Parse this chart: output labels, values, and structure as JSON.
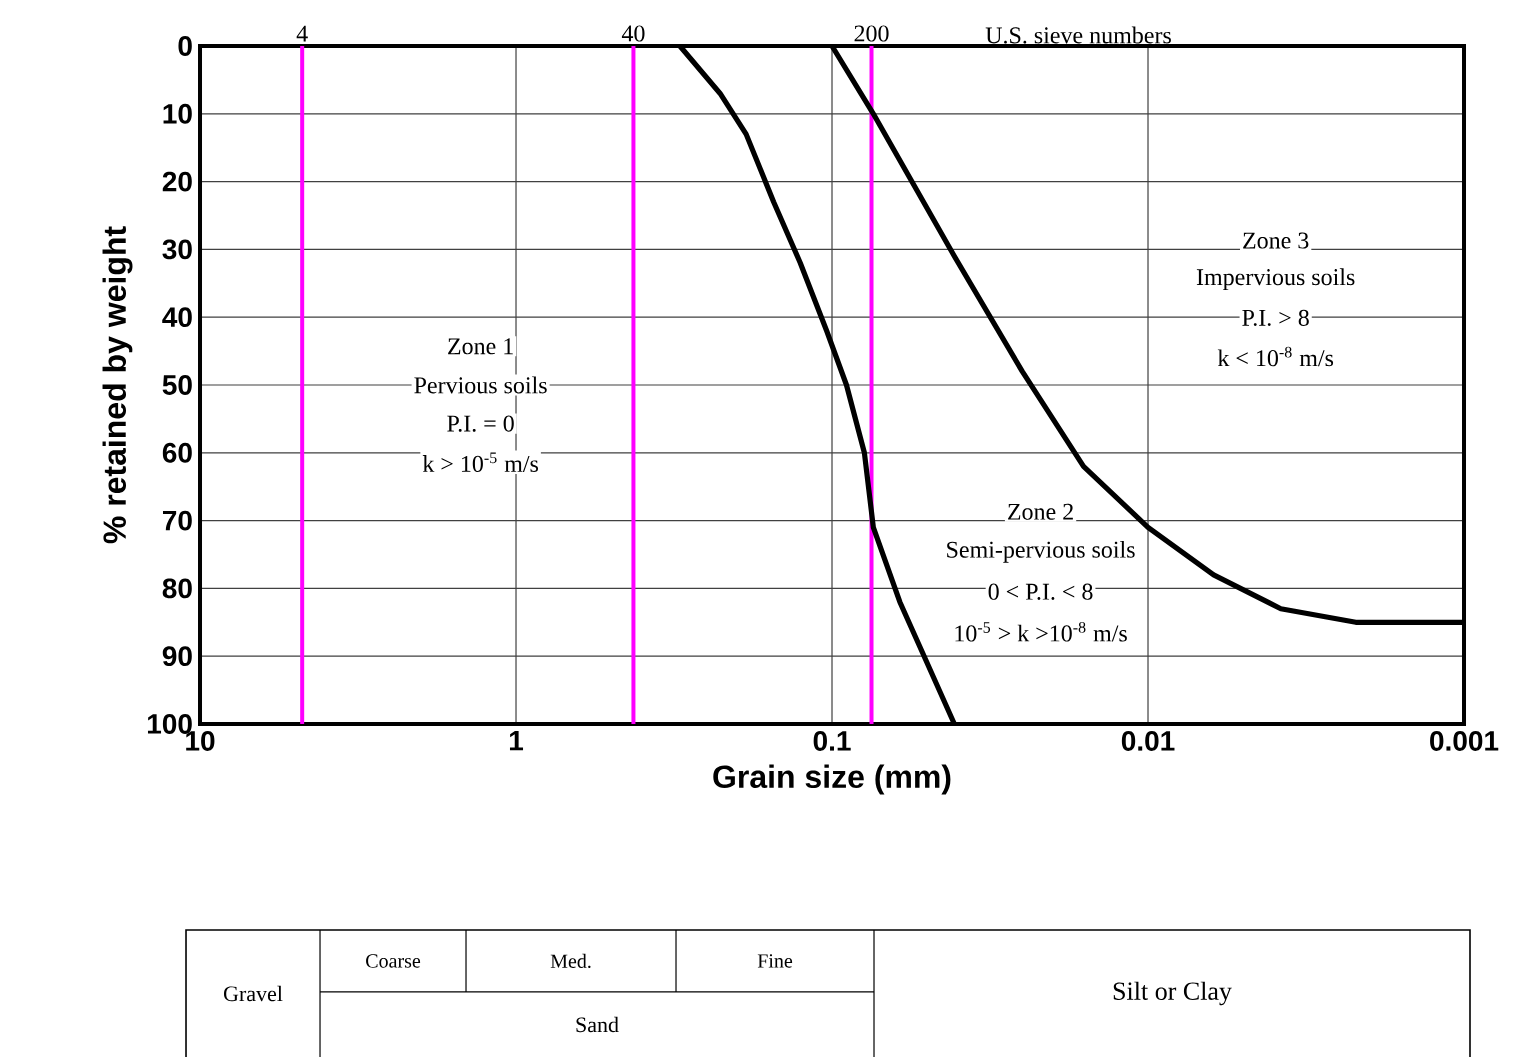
{
  "chart_data": {
    "type": "line",
    "xlabel": "Grain size (mm)",
    "ylabel": "% retained by weight",
    "log": "x",
    "grid": true,
    "marker": "none",
    "line_style": "solid",
    "xlim": [
      10,
      0.001
    ],
    "xticks": [
      10,
      1,
      0.1,
      0.01,
      0.001
    ],
    "ylim": [
      100,
      0
    ],
    "yticks": [
      0,
      10,
      20,
      30,
      40,
      50,
      60,
      70,
      80,
      90,
      100
    ],
    "series": [
      {
        "color": "#000000",
        "x": [
          0.303,
          0.226,
          0.187,
          0.153,
          0.126,
          0.104,
          0.09,
          0.079,
          0.074,
          0.061,
          0.05,
          0.041
        ],
        "values": [
          0,
          7,
          13,
          23,
          32,
          42,
          50,
          60,
          71,
          82,
          91,
          100
        ]
      },
      {
        "color": "#000000",
        "x": [
          0.1,
          0.074,
          0.041,
          0.025,
          0.016,
          0.01,
          0.0062,
          0.0038,
          0.0022,
          0.001
        ],
        "values": [
          0,
          10,
          31,
          48,
          62,
          71,
          78,
          83,
          85,
          85
        ]
      }
    ],
    "ref_lines": [
      {
        "axis": "x",
        "value": 4.75,
        "color": "#ff00ff"
      },
      {
        "axis": "x",
        "value": 0.425,
        "color": "#ff00ff"
      },
      {
        "axis": "x",
        "value": 0.075,
        "color": "#ff00ff"
      }
    ],
    "annotations": [
      "Zone 1",
      "Pervious soils",
      "P.I. = 0",
      "k > 10$^{-5}$ m/s",
      "Zone 3",
      "Impervious soils",
      "P.I. > 8",
      "k < 10$^{-8}$ m/s",
      "Zone 2",
      "Semi-pervious soils",
      "0 < P.I. < 8",
      "10$^{-5}$ > k >10$^{-8}$ m/s",
      "Gravel",
      "Coarse",
      "Med.",
      "Fine",
      "Sand",
      "Silt or Clay",
      "U.S. sieve numbers",
      {
        "text": "4",
        "x": 4.75,
        "y": 0
      },
      {
        "text": "40",
        "x": 0.425,
        "y": 0
      },
      {
        "text": "200",
        "x": 0.075,
        "y": 0
      }
    ]
  }
}
